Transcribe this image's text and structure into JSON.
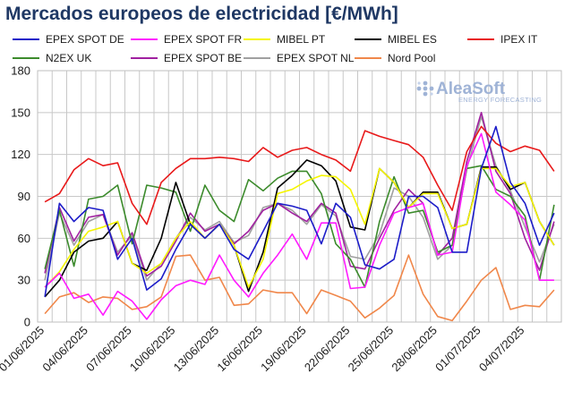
{
  "chart_data": {
    "type": "line",
    "title": "Mercados europeos de electricidad [€/MWh]",
    "xlabel": "",
    "ylabel": "",
    "ylim": [
      0,
      180
    ],
    "yticks": [
      0,
      30,
      60,
      90,
      120,
      150,
      180
    ],
    "grid": true,
    "legend_position": "top",
    "x": [
      "01/06/2025",
      "02/06/2025",
      "03/06/2025",
      "04/06/2025",
      "05/06/2025",
      "06/06/2025",
      "07/06/2025",
      "08/06/2025",
      "09/06/2025",
      "10/06/2025",
      "11/06/2025",
      "12/06/2025",
      "13/06/2025",
      "14/06/2025",
      "15/06/2025",
      "16/06/2025",
      "17/06/2025",
      "18/06/2025",
      "19/06/2025",
      "20/06/2025",
      "21/06/2025",
      "22/06/2025",
      "23/06/2025",
      "24/06/2025",
      "25/06/2025",
      "26/06/2025",
      "27/06/2025",
      "28/06/2025",
      "29/06/2025",
      "30/06/2025",
      "01/07/2025",
      "02/07/2025",
      "03/07/2025",
      "04/07/2025",
      "05/07/2025",
      "06/07/2025"
    ],
    "x_tick_labels": [
      "01/06/2025",
      "04/06/2025",
      "07/06/2025",
      "10/06/2025",
      "13/06/2025",
      "16/06/2025",
      "19/06/2025",
      "22/06/2025",
      "25/06/2025",
      "28/06/2025",
      "01/07/2025",
      "04/07/2025"
    ],
    "series": [
      {
        "name": "EPEX SPOT DE",
        "color": "#1c1cc8",
        "values": [
          18,
          85,
          72,
          82,
          80,
          45,
          60,
          23,
          31,
          52,
          70,
          60,
          70,
          52,
          45,
          65,
          85,
          83,
          80,
          56,
          85,
          75,
          41,
          38,
          45,
          90,
          90,
          82,
          50,
          50,
          110,
          140,
          100,
          85,
          55,
          78
        ]
      },
      {
        "name": "EPEX SPOT FR",
        "color": "#ff1aff",
        "values": [
          25,
          35,
          17,
          20,
          5,
          22,
          15,
          2,
          16,
          26,
          30,
          27,
          48,
          30,
          18,
          35,
          48,
          63,
          45,
          71,
          71,
          24,
          25,
          55,
          78,
          82,
          85,
          48,
          50,
          112,
          135,
          93,
          84,
          73,
          30,
          30
        ]
      },
      {
        "name": "MIBEL PT",
        "color": "#f5f500",
        "values": [
          25,
          36,
          52,
          65,
          68,
          72,
          42,
          35,
          42,
          60,
          72,
          60,
          70,
          55,
          25,
          45,
          92,
          95,
          101,
          105,
          104,
          95,
          70,
          110,
          100,
          82,
          92,
          92,
          67,
          70,
          110,
          110,
          97,
          100,
          72,
          55
        ]
      },
      {
        "name": "MIBEL ES",
        "color": "#000000",
        "values": [
          18,
          30,
          50,
          58,
          60,
          72,
          42,
          37,
          60,
          100,
          70,
          60,
          70,
          55,
          22,
          50,
          96,
          105,
          116,
          112,
          101,
          68,
          66,
          110,
          100,
          82,
          93,
          93,
          67,
          70,
          111,
          111,
          95,
          100,
          72,
          55
        ]
      },
      {
        "name": "IPEX IT",
        "color": "#e8191a",
        "values": [
          86,
          92,
          109,
          117,
          112,
          114,
          85,
          70,
          100,
          110,
          117,
          117,
          118,
          117,
          115,
          125,
          118,
          123,
          125,
          120,
          116,
          108,
          137,
          133,
          130,
          127,
          118,
          98,
          80,
          122,
          140,
          128,
          122,
          126,
          123,
          108
        ]
      },
      {
        "name": "N2EX UK",
        "color": "#3c8b2c",
        "values": [
          38,
          80,
          40,
          88,
          90,
          98,
          56,
          98,
          96,
          93,
          65,
          98,
          80,
          72,
          102,
          94,
          103,
          108,
          108,
          92,
          56,
          45,
          25,
          72,
          104,
          78,
          80,
          50,
          55,
          110,
          112,
          95,
          90,
          76,
          30,
          84
        ]
      },
      {
        "name": "EPEX SPOT BE",
        "color": "#a020a0",
        "values": [
          35,
          82,
          58,
          75,
          77,
          48,
          64,
          33,
          40,
          58,
          78,
          65,
          70,
          56,
          65,
          80,
          85,
          78,
          72,
          85,
          78,
          40,
          38,
          60,
          80,
          95,
          85,
          48,
          60,
          115,
          150,
          108,
          92,
          60,
          37,
          72
        ]
      },
      {
        "name": "EPEX SPOT NL",
        "color": "#a0a0a0",
        "values": [
          30,
          78,
          55,
          72,
          77,
          50,
          62,
          30,
          42,
          60,
          75,
          66,
          72,
          57,
          62,
          82,
          85,
          80,
          70,
          84,
          76,
          47,
          45,
          63,
          96,
          90,
          75,
          45,
          55,
          110,
          147,
          112,
          94,
          68,
          43,
          70
        ]
      },
      {
        "name": "Nord Pool",
        "color": "#f0874a",
        "values": [
          6,
          18,
          21,
          14,
          18,
          17,
          9,
          11,
          18,
          47,
          48,
          30,
          32,
          12,
          13,
          23,
          21,
          21,
          6,
          23,
          19,
          15,
          3,
          10,
          19,
          48,
          20,
          4,
          1,
          15,
          30,
          39,
          9,
          12,
          11,
          23
        ]
      }
    ]
  },
  "logo": {
    "name": "AleaSoft",
    "tagline": "ENERGY FORECASTING"
  }
}
